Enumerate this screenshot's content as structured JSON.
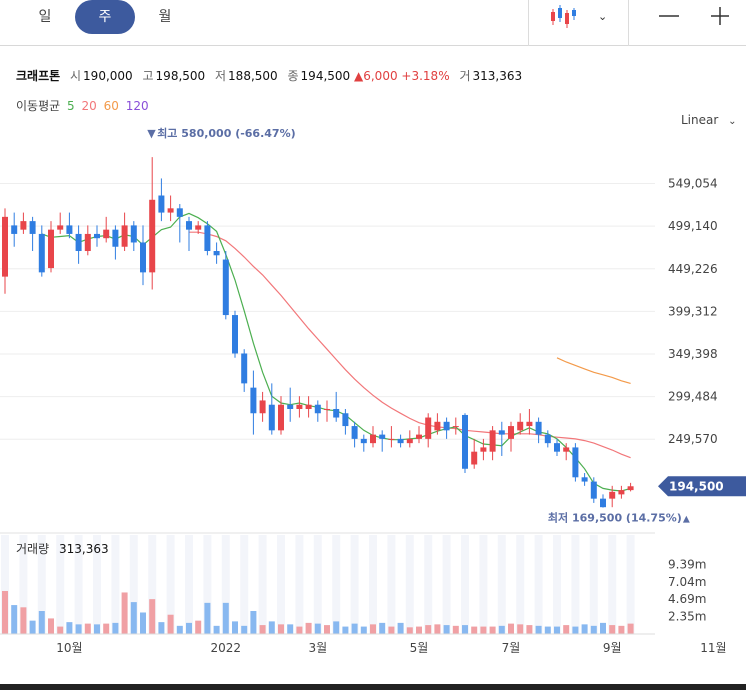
{
  "tabs": [
    {
      "label": "일",
      "active": false
    },
    {
      "label": "주",
      "active": true
    },
    {
      "label": "월",
      "active": false
    }
  ],
  "controls": {
    "chart_type_icon": "candlestick-icon",
    "dropdown_icon": "chevron-down-icon",
    "zoom_out_icon": "minus-icon",
    "zoom_in_icon": "plus-icon"
  },
  "stock": {
    "name": "크래프톤",
    "open_label": "시",
    "open": "190,000",
    "high_label": "고",
    "high": "198,500",
    "low_label": "저",
    "low": "188,500",
    "close_label": "종",
    "close": "194,500",
    "change_arrow": "▲",
    "change": "6,000",
    "change_pct": "+3.18%",
    "volume_label": "거",
    "volume": "313,363"
  },
  "moving_average": {
    "label": "이동평균",
    "periods": [
      "5",
      "20",
      "60",
      "120"
    ]
  },
  "scale_mode": "Linear",
  "volume_panel": {
    "label": "거래량",
    "value": "313,363"
  },
  "colors": {
    "up": "#e8454a",
    "down": "#2f7de1",
    "ma5": "#4caf50",
    "ma20": "#f2777a",
    "ma60": "#f39a4a",
    "ma120": "#8a4fd8",
    "price_tag": "#3d5a9e",
    "volume_up": "#f0a0a4",
    "volume_down": "#88b8f0"
  },
  "chart_data": {
    "type": "candlestick",
    "price_axis": {
      "ticks": [
        549054,
        499140,
        449226,
        399312,
        349398,
        299484,
        249570
      ],
      "labels": [
        "549,054",
        "499,140",
        "449,226",
        "399,312",
        "349,398",
        "299,484",
        "249,570"
      ],
      "range": [
        155000,
        600000
      ]
    },
    "volume_axis": {
      "ticks": [
        9390000,
        7040000,
        4690000,
        2350000
      ],
      "labels": [
        "9.39m",
        "7.04m",
        "4.69m",
        "2.35m"
      ],
      "max": 12000000
    },
    "x_axis_labels": [
      "10월",
      "2022",
      "3월",
      "5월",
      "7월",
      "9월",
      "11월"
    ],
    "x_axis_label_index": [
      7,
      24,
      34,
      45,
      55,
      66,
      77
    ],
    "current_price_label": "194,500",
    "current_price": 194500,
    "high_annotation": {
      "text": "최고 580,000 (-66.47%)",
      "marker": "▼",
      "value": 580000,
      "index": 16
    },
    "low_annotation": {
      "text": "최저 169,500 (14.75%)",
      "marker": "▲",
      "value": 169500,
      "index": 74
    },
    "candles": [
      [
        440000,
        510000,
        520000,
        420000
      ],
      [
        500000,
        490000,
        515000,
        475000
      ],
      [
        495000,
        505000,
        515000,
        490000
      ],
      [
        505000,
        490000,
        510000,
        470000
      ],
      [
        490000,
        445000,
        500000,
        440000
      ],
      [
        450000,
        495000,
        505000,
        445000
      ],
      [
        495000,
        500000,
        515000,
        490000
      ],
      [
        500000,
        490000,
        515000,
        485000
      ],
      [
        490000,
        470000,
        500000,
        455000
      ],
      [
        470000,
        490000,
        500000,
        465000
      ],
      [
        490000,
        485000,
        500000,
        475000
      ],
      [
        485000,
        495000,
        510000,
        480000
      ],
      [
        495000,
        475000,
        500000,
        460000
      ],
      [
        475000,
        500000,
        515000,
        470000
      ],
      [
        500000,
        480000,
        505000,
        470000
      ],
      [
        480000,
        445000,
        500000,
        430000
      ],
      [
        445000,
        530000,
        580000,
        425000
      ],
      [
        535000,
        515000,
        555000,
        505000
      ],
      [
        515000,
        520000,
        535000,
        505000
      ],
      [
        520000,
        510000,
        525000,
        480000
      ],
      [
        505000,
        495000,
        510000,
        470000
      ],
      [
        495000,
        500000,
        505000,
        490000
      ],
      [
        500000,
        470000,
        505000,
        465000
      ],
      [
        470000,
        465000,
        480000,
        455000
      ],
      [
        460000,
        395000,
        470000,
        390000
      ],
      [
        395000,
        350000,
        400000,
        345000
      ],
      [
        350000,
        315000,
        355000,
        305000
      ],
      [
        310000,
        280000,
        330000,
        255000
      ],
      [
        280000,
        295000,
        305000,
        270000
      ],
      [
        290000,
        260000,
        315000,
        255000
      ],
      [
        260000,
        290000,
        300000,
        255000
      ],
      [
        290000,
        285000,
        310000,
        270000
      ],
      [
        285000,
        290000,
        300000,
        275000
      ],
      [
        285000,
        290000,
        300000,
        275000
      ],
      [
        290000,
        280000,
        295000,
        270000
      ],
      [
        285000,
        285000,
        295000,
        270000
      ],
      [
        285000,
        275000,
        305000,
        270000
      ],
      [
        280000,
        265000,
        285000,
        255000
      ],
      [
        265000,
        250000,
        270000,
        240000
      ],
      [
        250000,
        245000,
        255000,
        235000
      ],
      [
        245000,
        255000,
        265000,
        240000
      ],
      [
        255000,
        250000,
        260000,
        235000
      ],
      [
        250000,
        250000,
        265000,
        240000
      ],
      [
        250000,
        245000,
        255000,
        240000
      ],
      [
        245000,
        250000,
        260000,
        240000
      ],
      [
        250000,
        255000,
        265000,
        245000
      ],
      [
        250000,
        275000,
        280000,
        240000
      ],
      [
        260000,
        270000,
        280000,
        255000
      ],
      [
        270000,
        260000,
        275000,
        250000
      ],
      [
        265000,
        265000,
        275000,
        255000
      ],
      [
        278000,
        215000,
        280000,
        210000
      ],
      [
        220000,
        235000,
        250000,
        215000
      ],
      [
        235000,
        240000,
        250000,
        225000
      ],
      [
        235000,
        260000,
        265000,
        225000
      ],
      [
        260000,
        255000,
        270000,
        230000
      ],
      [
        250000,
        265000,
        270000,
        235000
      ],
      [
        260000,
        270000,
        280000,
        255000
      ],
      [
        265000,
        270000,
        285000,
        255000
      ],
      [
        270000,
        255000,
        275000,
        245000
      ],
      [
        255000,
        245000,
        260000,
        240000
      ],
      [
        245000,
        235000,
        250000,
        230000
      ],
      [
        235000,
        240000,
        245000,
        225000
      ],
      [
        240000,
        205000,
        245000,
        200000
      ],
      [
        205000,
        200000,
        210000,
        195000
      ],
      [
        200000,
        180000,
        205000,
        175000
      ],
      [
        180000,
        170000,
        185000,
        169500
      ],
      [
        180000,
        188000,
        195000,
        170000
      ],
      [
        185000,
        190000,
        195000,
        180000
      ],
      [
        190000,
        194500,
        198500,
        188500
      ]
    ],
    "volume": [
      5800000,
      3900000,
      3600000,
      1800000,
      3100000,
      2100000,
      1000000,
      1600000,
      1300000,
      1400000,
      1300000,
      1400000,
      1500000,
      5600000,
      4300000,
      2900000,
      4700000,
      1600000,
      2600000,
      1100000,
      1500000,
      1800000,
      4200000,
      1100000,
      4200000,
      1700000,
      1100000,
      3100000,
      1200000,
      1700000,
      1300000,
      1300000,
      1000000,
      1500000,
      1400000,
      1200000,
      1700000,
      1000000,
      1400000,
      1000000,
      1300000,
      1500000,
      1000000,
      1500000,
      900000,
      1000000,
      1200000,
      1300000,
      1200000,
      1100000,
      1200000,
      1000000,
      1000000,
      1000000,
      1100000,
      1400000,
      1300000,
      1200000,
      1100000,
      1000000,
      1000000,
      1200000,
      1000000,
      1300000,
      1100000,
      1500000,
      1200000,
      1100000,
      1400000
    ],
    "ma5": [
      null,
      null,
      null,
      null,
      490000,
      486000,
      487000,
      488000,
      480000,
      484000,
      487000,
      488000,
      484000,
      489000,
      487000,
      477000,
      486000,
      495000,
      498000,
      510000,
      514000,
      509000,
      502000,
      493000,
      466000,
      436000,
      400000,
      362000,
      328000,
      300000,
      292000,
      290000,
      292000,
      289000,
      287000,
      284000,
      283000,
      278000,
      269000,
      260000,
      254000,
      251000,
      249000,
      249000,
      250000,
      251000,
      255000,
      259000,
      262000,
      264000,
      254000,
      249000,
      244000,
      243000,
      242000,
      253000,
      258000,
      263000,
      258000,
      256000,
      250000,
      240000,
      228000,
      215000,
      198000,
      192000,
      190000,
      189000,
      192000
    ],
    "ma20": [
      null,
      null,
      null,
      null,
      null,
      null,
      null,
      null,
      null,
      null,
      null,
      null,
      null,
      null,
      null,
      null,
      null,
      null,
      null,
      null,
      492000,
      492000,
      490000,
      487000,
      482000,
      473000,
      463000,
      452000,
      442000,
      430000,
      418000,
      405000,
      392000,
      379000,
      367000,
      355000,
      343000,
      331000,
      320000,
      310000,
      301000,
      293000,
      286000,
      280000,
      274000,
      269000,
      266000,
      264000,
      263000,
      262000,
      260000,
      259000,
      258000,
      257000,
      256000,
      256000,
      256000,
      256000,
      255000,
      253000,
      252000,
      251000,
      250000,
      248000,
      245000,
      241000,
      237000,
      232000,
      228000
    ],
    "ma60": [
      null,
      null,
      null,
      null,
      null,
      null,
      null,
      null,
      null,
      null,
      null,
      null,
      null,
      null,
      null,
      null,
      null,
      null,
      null,
      null,
      null,
      null,
      null,
      null,
      null,
      null,
      null,
      null,
      null,
      null,
      null,
      null,
      null,
      null,
      null,
      null,
      null,
      null,
      null,
      null,
      null,
      null,
      null,
      null,
      null,
      null,
      null,
      null,
      null,
      null,
      null,
      null,
      null,
      null,
      null,
      null,
      null,
      null,
      null,
      null,
      345000,
      340000,
      336000,
      332000,
      328000,
      325000,
      322000,
      318000,
      315000
    ]
  }
}
